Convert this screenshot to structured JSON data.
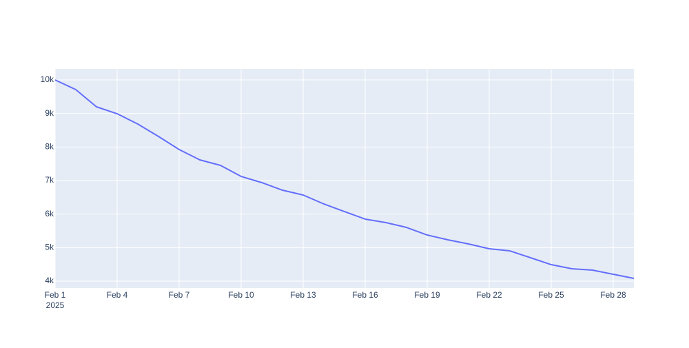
{
  "chart_data": {
    "type": "line",
    "x": [
      "2025-02-01",
      "2025-02-02",
      "2025-02-03",
      "2025-02-04",
      "2025-02-05",
      "2025-02-06",
      "2025-02-07",
      "2025-02-08",
      "2025-02-09",
      "2025-02-10",
      "2025-02-11",
      "2025-02-12",
      "2025-02-13",
      "2025-02-14",
      "2025-02-15",
      "2025-02-16",
      "2025-02-17",
      "2025-02-18",
      "2025-02-19",
      "2025-02-20",
      "2025-02-21",
      "2025-02-22",
      "2025-02-23",
      "2025-02-24",
      "2025-02-25",
      "2025-02-26",
      "2025-02-27",
      "2025-02-28",
      "2025-03-01"
    ],
    "series": [
      {
        "color": "#636efa",
        "values": [
          10000,
          9712,
          9199,
          8993,
          8685,
          8315,
          7925,
          7617,
          7452,
          7123,
          6939,
          6712,
          6569,
          6302,
          6075,
          5850,
          5747,
          5603,
          5377,
          5233,
          5110,
          4966,
          4904,
          4699,
          4493,
          4370,
          4329,
          4206,
          4082
        ]
      }
    ],
    "xlim": [
      "2025-02-01",
      "2025-03-01"
    ],
    "xticks": [
      {
        "value": "2025-02-01",
        "label": "Feb 1"
      },
      {
        "value": "2025-02-04",
        "label": "Feb 4"
      },
      {
        "value": "2025-02-07",
        "label": "Feb 7"
      },
      {
        "value": "2025-02-10",
        "label": "Feb 10"
      },
      {
        "value": "2025-02-13",
        "label": "Feb 13"
      },
      {
        "value": "2025-02-16",
        "label": "Feb 16"
      },
      {
        "value": "2025-02-19",
        "label": "Feb 19"
      },
      {
        "value": "2025-02-22",
        "label": "Feb 22"
      },
      {
        "value": "2025-02-25",
        "label": "Feb 25"
      },
      {
        "value": "2025-02-28",
        "label": "Feb 28"
      }
    ],
    "xtick_year": "2025",
    "ylim": [
      3795,
      10329
    ],
    "yticks": [
      {
        "value": 4000,
        "label": "4k"
      },
      {
        "value": 5000,
        "label": "5k"
      },
      {
        "value": 6000,
        "label": "6k"
      },
      {
        "value": 7000,
        "label": "7k"
      },
      {
        "value": 8000,
        "label": "8k"
      },
      {
        "value": 9000,
        "label": "9k"
      },
      {
        "value": 10000,
        "label": "10k"
      }
    ],
    "grid": true
  }
}
